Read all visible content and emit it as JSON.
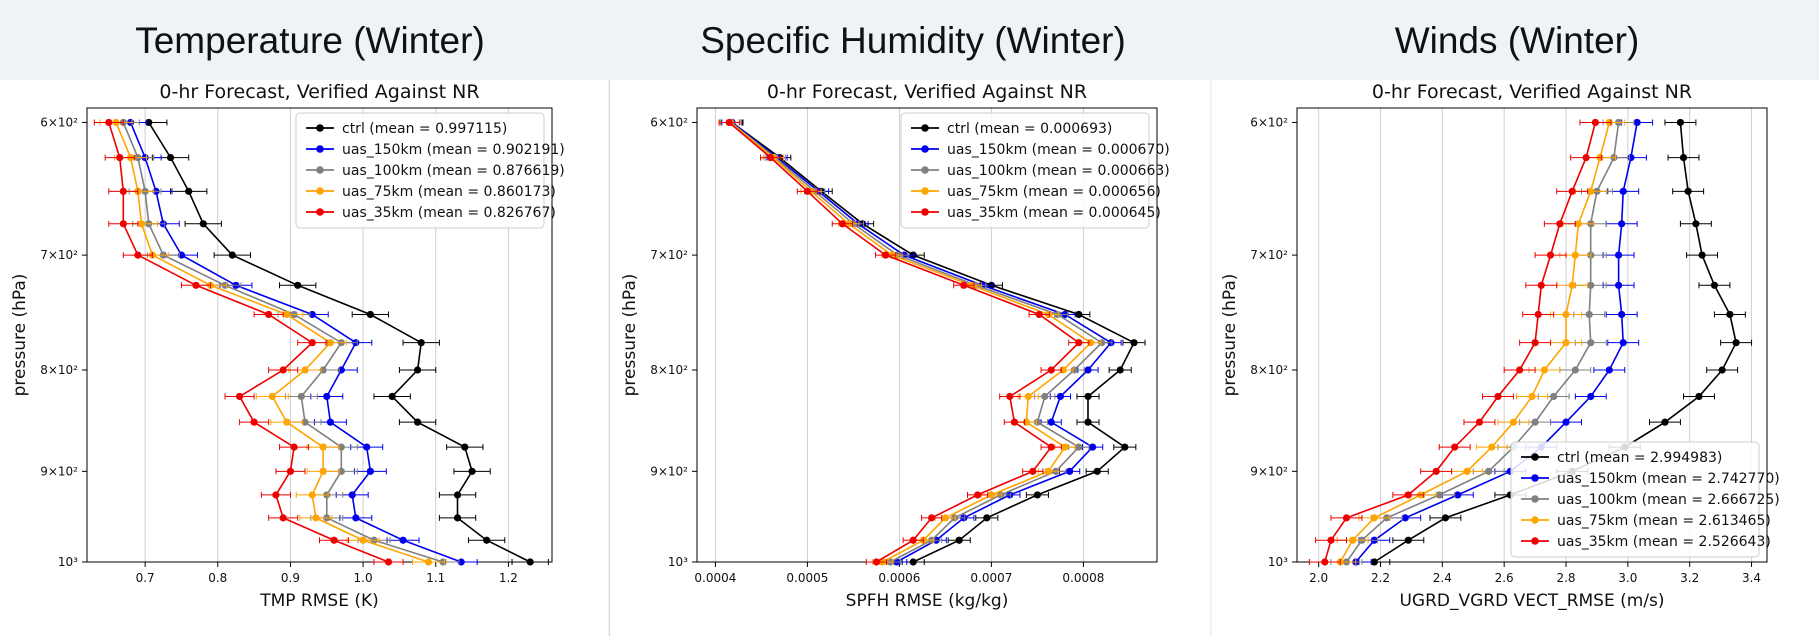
{
  "chart_data": [
    {
      "type": "line",
      "panel_title": "Temperature (Winter)",
      "title": "0-hr Forecast, Verified Against NR",
      "xlabel": "TMP RMSE (K)",
      "ylabel": "pressure (hPa)",
      "xlim": [
        0.62,
        1.26
      ],
      "xticks": [
        0.7,
        0.8,
        0.9,
        1.0,
        1.1,
        1.2
      ],
      "xtick_labels": [
        "0.7",
        "0.8",
        "0.9",
        "1.0",
        "1.1",
        "1.2"
      ],
      "ylim": [
        1000,
        590
      ],
      "yscale": "log",
      "yticks": [
        600,
        700,
        800,
        900,
        1000
      ],
      "ytick_labels": [
        "6×10²",
        "7×10²",
        "8×10²",
        "9×10²",
        "10³"
      ],
      "grid": "vertical",
      "legend_position": "top-right",
      "pressure": [
        600,
        625,
        650,
        675,
        700,
        725,
        750,
        775,
        800,
        825,
        850,
        875,
        900,
        925,
        950,
        975,
        1000
      ],
      "series": [
        {
          "name": "ctrl",
          "mean_label": "ctrl (mean = 0.997115)",
          "color": "#000000",
          "err": 0.025,
          "values": [
            0.705,
            0.735,
            0.76,
            0.78,
            0.82,
            0.91,
            1.01,
            1.08,
            1.075,
            1.04,
            1.075,
            1.14,
            1.15,
            1.13,
            1.13,
            1.17,
            1.23
          ]
        },
        {
          "name": "uas_150km",
          "mean_label": "uas_150km (mean = 0.902191)",
          "color": "#0000ee",
          "err": 0.022,
          "values": [
            0.68,
            0.7,
            0.715,
            0.725,
            0.75,
            0.825,
            0.93,
            0.99,
            0.97,
            0.95,
            0.955,
            1.005,
            1.01,
            0.985,
            0.99,
            1.055,
            1.135
          ]
        },
        {
          "name": "uas_100km",
          "mean_label": "uas_100km (mean = 0.876619)",
          "color": "#808080",
          "err": 0.022,
          "values": [
            0.67,
            0.69,
            0.7,
            0.705,
            0.725,
            0.81,
            0.905,
            0.97,
            0.945,
            0.915,
            0.92,
            0.97,
            0.97,
            0.95,
            0.95,
            1.015,
            1.11
          ]
        },
        {
          "name": "uas_75km",
          "mean_label": "uas_75km (mean = 0.860173)",
          "color": "#ffa500",
          "err": 0.022,
          "values": [
            0.66,
            0.68,
            0.69,
            0.695,
            0.71,
            0.79,
            0.895,
            0.955,
            0.92,
            0.875,
            0.895,
            0.945,
            0.945,
            0.93,
            0.935,
            1.0,
            1.09
          ]
        },
        {
          "name": "uas_35km",
          "mean_label": "uas_35km (mean = 0.826767)",
          "color": "#ee0000",
          "err": 0.02,
          "values": [
            0.65,
            0.665,
            0.67,
            0.67,
            0.69,
            0.77,
            0.87,
            0.93,
            0.89,
            0.83,
            0.85,
            0.905,
            0.9,
            0.88,
            0.89,
            0.96,
            1.035
          ]
        }
      ]
    },
    {
      "type": "line",
      "panel_title": "Specific Humidity (Winter)",
      "title": "0-hr Forecast, Verified Against NR",
      "xlabel": "SPFH RMSE (kg/kg)",
      "ylabel": "pressure (hPa)",
      "xlim": [
        0.00038,
        0.00088
      ],
      "xticks": [
        0.0004,
        0.0005,
        0.0006,
        0.0007,
        0.0008
      ],
      "xtick_labels": [
        "0.0004",
        "0.0005",
        "0.0006",
        "0.0007",
        "0.0008"
      ],
      "ylim": [
        1000,
        590
      ],
      "yscale": "log",
      "yticks": [
        600,
        700,
        800,
        900,
        1000
      ],
      "ytick_labels": [
        "6×10²",
        "7×10²",
        "8×10²",
        "9×10²",
        "10³"
      ],
      "grid": "vertical",
      "legend_position": "top-right",
      "pressure": [
        600,
        625,
        650,
        675,
        700,
        725,
        750,
        775,
        800,
        825,
        850,
        875,
        900,
        925,
        950,
        975,
        1000
      ],
      "series": [
        {
          "name": "ctrl",
          "mean_label": "ctrl (mean = 0.000693)",
          "color": "#000000",
          "err": 1.2e-05,
          "values": [
            0.000418,
            0.00047,
            0.000515,
            0.00056,
            0.000615,
            0.0007,
            0.000795,
            0.000855,
            0.00084,
            0.000805,
            0.000805,
            0.000845,
            0.000815,
            0.00075,
            0.000695,
            0.000665,
            0.000615
          ]
        },
        {
          "name": "uas_150km",
          "mean_label": "uas_150km (mean = 0.000670)",
          "color": "#0000ee",
          "err": 1.1e-05,
          "values": [
            0.000418,
            0.000467,
            0.000512,
            0.000555,
            0.000605,
            0.00069,
            0.00078,
            0.00083,
            0.000805,
            0.000775,
            0.000765,
            0.00081,
            0.000785,
            0.00072,
            0.00067,
            0.00064,
            0.000597
          ]
        },
        {
          "name": "uas_100km",
          "mean_label": "uas_100km (mean = 0.000663)",
          "color": "#808080",
          "err": 1.1e-05,
          "values": [
            0.000417,
            0.000465,
            0.000508,
            0.00055,
            0.000598,
            0.000683,
            0.000772,
            0.00082,
            0.00079,
            0.000758,
            0.00075,
            0.000795,
            0.00077,
            0.00071,
            0.00066,
            0.000635,
            0.00059
          ]
        },
        {
          "name": "uas_75km",
          "mean_label": "uas_75km (mean = 0.000656)",
          "color": "#ffa500",
          "err": 1.1e-05,
          "values": [
            0.000416,
            0.000463,
            0.000504,
            0.000545,
            0.000592,
            0.000678,
            0.000762,
            0.000808,
            0.000778,
            0.00074,
            0.000738,
            0.00078,
            0.000762,
            0.0007,
            0.00065,
            0.000626,
            0.000582
          ]
        },
        {
          "name": "uas_35km",
          "mean_label": "uas_35km (mean = 0.000645)",
          "color": "#ee0000",
          "err": 1.1e-05,
          "values": [
            0.000415,
            0.00046,
            0.0005,
            0.000538,
            0.000585,
            0.00067,
            0.000752,
            0.000795,
            0.000765,
            0.00072,
            0.000725,
            0.000765,
            0.000745,
            0.000685,
            0.000635,
            0.000615,
            0.000575
          ]
        }
      ]
    },
    {
      "type": "line",
      "panel_title": "Winds (Winter)",
      "title": "0-hr Forecast, Verified Against NR",
      "xlabel": "UGRD_VGRD VECT_RMSE (m/s)",
      "ylabel": "pressure (hPa)",
      "xlim": [
        1.93,
        3.45
      ],
      "xticks": [
        2.0,
        2.2,
        2.4,
        2.6,
        2.8,
        3.0,
        3.2,
        3.4
      ],
      "xtick_labels": [
        "2.0",
        "2.2",
        "2.4",
        "2.6",
        "2.8",
        "3.0",
        "3.2",
        "3.4"
      ],
      "ylim": [
        1000,
        590
      ],
      "yscale": "log",
      "yticks": [
        600,
        700,
        800,
        900,
        1000
      ],
      "ytick_labels": [
        "6×10²",
        "7×10²",
        "8×10²",
        "9×10²",
        "10³"
      ],
      "grid": "vertical",
      "legend_position": "lower-right",
      "pressure": [
        600,
        625,
        650,
        675,
        700,
        725,
        750,
        775,
        800,
        825,
        850,
        875,
        900,
        925,
        950,
        975,
        1000
      ],
      "series": [
        {
          "name": "ctrl",
          "mean_label": "ctrl (mean = 2.994983)",
          "color": "#000000",
          "err": 0.05,
          "values": [
            3.17,
            3.18,
            3.195,
            3.22,
            3.24,
            3.28,
            3.33,
            3.35,
            3.305,
            3.23,
            3.12,
            2.99,
            2.82,
            2.62,
            2.41,
            2.29,
            2.18
          ]
        },
        {
          "name": "uas_150km",
          "mean_label": "uas_150km (mean = 2.742770)",
          "color": "#0000ee",
          "err": 0.05,
          "values": [
            3.03,
            3.01,
            2.985,
            2.98,
            2.97,
            2.97,
            2.98,
            2.985,
            2.94,
            2.88,
            2.8,
            2.72,
            2.62,
            2.45,
            2.28,
            2.18,
            2.12
          ]
        },
        {
          "name": "uas_100km",
          "mean_label": "uas_100km (mean = 2.666725)",
          "color": "#808080",
          "err": 0.05,
          "values": [
            2.97,
            2.955,
            2.9,
            2.88,
            2.88,
            2.88,
            2.875,
            2.88,
            2.83,
            2.76,
            2.7,
            2.63,
            2.55,
            2.39,
            2.22,
            2.14,
            2.09
          ]
        },
        {
          "name": "uas_75km",
          "mean_label": "uas_75km (mean = 2.613465)",
          "color": "#ffa500",
          "err": 0.05,
          "values": [
            2.94,
            2.91,
            2.88,
            2.84,
            2.83,
            2.82,
            2.8,
            2.8,
            2.73,
            2.69,
            2.63,
            2.56,
            2.48,
            2.33,
            2.18,
            2.11,
            2.07
          ]
        },
        {
          "name": "uas_35km",
          "mean_label": "uas_35km (mean = 2.526643)",
          "color": "#ee0000",
          "err": 0.05,
          "values": [
            2.895,
            2.865,
            2.82,
            2.78,
            2.75,
            2.72,
            2.71,
            2.7,
            2.65,
            2.58,
            2.52,
            2.44,
            2.38,
            2.29,
            2.09,
            2.04,
            2.02
          ]
        }
      ]
    }
  ]
}
